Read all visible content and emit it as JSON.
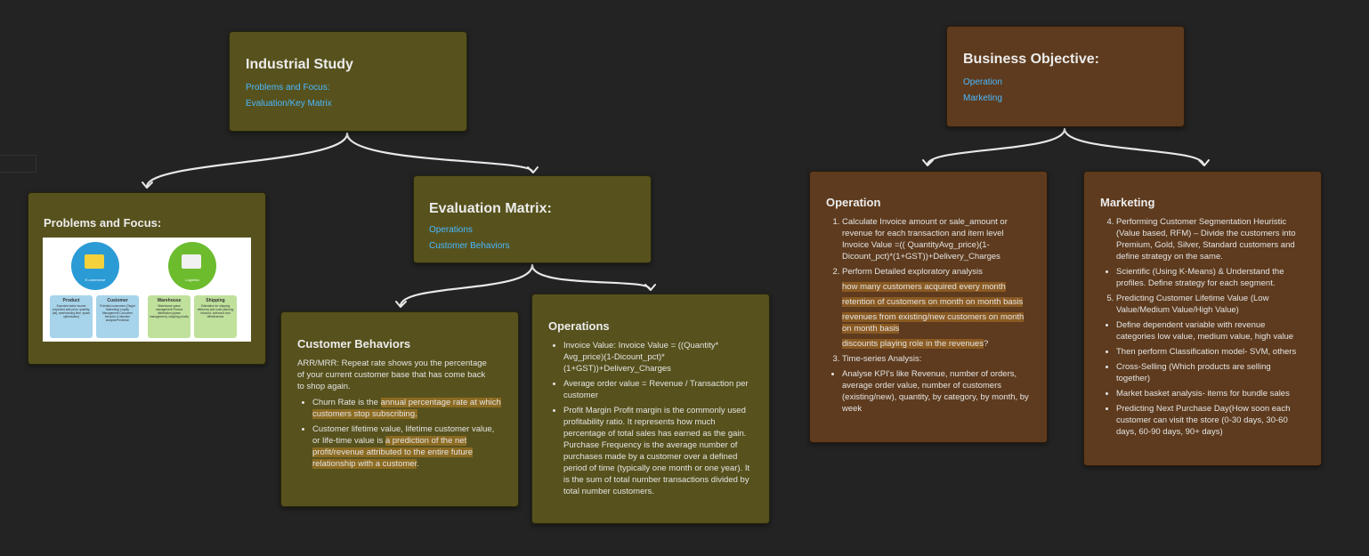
{
  "industrial": {
    "title": "Industrial Study",
    "links": [
      "Problems and Focus:",
      "Evaluation/Key Matrix"
    ]
  },
  "problems": {
    "title": "Problems and Focus:",
    "figure": {
      "ecommerce_label": "E-commerce",
      "logistics_label": "Logistics",
      "tiles": [
        {
          "heading": "Product",
          "text": "Expected sales income (expected sale price, quantity, pal), warehousing time, space optimization)"
        },
        {
          "heading": "Customer",
          "text": "Potential consumers (Target Marketing) Loyalty Management Consumer behavior & intention analysis/Prediction"
        },
        {
          "heading": "Warehouse",
          "text": "Warehouse space management Product distribution (space management), shipping priority"
        },
        {
          "heading": "Shipping",
          "text": "Estimation for shipping efficiency and route planning Inbound, outbound cost effectiveness"
        }
      ]
    }
  },
  "evaluation": {
    "title": "Evaluation Matrix:",
    "links": [
      "Operations",
      "Customer Behaviors"
    ]
  },
  "customer_behaviors": {
    "title": "Customer Behaviors",
    "intro": "ARR/MRR: Repeat rate shows you the percentage of your current customer base that has come back to shop again.",
    "churn": {
      "pre": "Churn Rate is the ",
      "hl": "annual percentage rate at which customers stop subscribing."
    },
    "clv": {
      "pre": "Customer lifetime value, lifetime customer value, or life-time value is ",
      "hl": "a prediction of the net profit/revenue attributed to the entire future relationship with a customer",
      "post": "."
    }
  },
  "operations_eval": {
    "title": "Operations",
    "items": [
      "Invoice Value: Invoice Value = ((Quantity* Avg_price)(1-Dicount_pct)*(1+GST))+Delivery_Charges",
      "Average order value = Revenue / Transaction per customer",
      "Profit Margin Profit margin is the commonly used profitability ratio. It represents how much percentage of total sales has earned as the gain. Purchase Frequency is the average number of purchases made by a customer over a defined period of time (typically one month or one year). It is the sum of total number transactions divided by total number customers."
    ]
  },
  "business": {
    "title": "Business Objective:",
    "links": [
      "Operation",
      "Marketing"
    ]
  },
  "operation_obj": {
    "title": "Operation",
    "item1": "Calculate Invoice amount or sale_amount or revenue for each transaction and item level Invoice Value =(( QuantityAvg_price)(1-Dicount_pct)*(1+GST))+Delivery_Charges",
    "item2": "Perform Detailed exploratory analysis",
    "hl_items": [
      " how many customers acquired every month",
      " retention of customers on month on month basis",
      " revenues from existing/new customers on month on month basis",
      "discounts playing role in the revenues"
    ],
    "hl4_suffix": "?",
    "item3": "Time-series Analysis:",
    "item3_sub": " Analyse KPI's like Revenue, number of orders, average order value, number of customers (existing/new), quantity, by category, by month, by week"
  },
  "marketing_obj": {
    "title": "Marketing",
    "item4": "Performing Customer Segmentation Heuristic (Value based, RFM) – Divide the customers into Premium, Gold, Silver, Standard customers and define strategy on the same.",
    "item4_sub": "Scientific (Using K-Means) & Understand the profiles. Define strategy for each segment.",
    "item5": "Predicting Customer Lifetime Value (Low Value/Medium Value/High Value)",
    "item5_subs": [
      "Define dependent variable with revenue categories low value, medium value, high value",
      "Then perform Classification model- SVM, others",
      "Cross-Selling (Which products are selling together)",
      "Market basket analysis- items for bundle sales",
      "Predicting Next Purchase Day(How soon each customer can visit the store (0-30 days, 30-60 days, 60-90 days, 90+ days)"
    ]
  },
  "colors": {
    "olive_card": "#57521d",
    "brown_card": "#5e3b1e",
    "link": "#4ab8ff",
    "highlight": "#8c6b22",
    "canvas": "#232323"
  }
}
